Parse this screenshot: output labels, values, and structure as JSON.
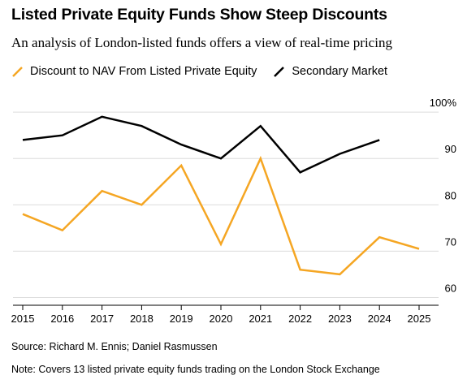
{
  "chart_data": {
    "type": "line",
    "title": "Listed Private Equity Funds Show Steep Discounts",
    "subtitle": "An analysis of London-listed funds offers a view of real-time pricing",
    "x": [
      "2015",
      "2016",
      "2017",
      "2018",
      "2019",
      "2020",
      "2021",
      "2022",
      "2023",
      "2024",
      "2025"
    ],
    "series": [
      {
        "name": "Discount to NAV From Listed Private Equity",
        "color": "#f5a623",
        "values": [
          78,
          74.5,
          83,
          80,
          88.5,
          71.5,
          90,
          66,
          65,
          73,
          70.5
        ]
      },
      {
        "name": "Secondary Market",
        "color": "#000000",
        "values": [
          94,
          95,
          99,
          97,
          93,
          90,
          97,
          87,
          91,
          94,
          null
        ]
      }
    ],
    "y_ticks": [
      "100%",
      "90",
      "80",
      "70",
      "60"
    ],
    "y_tick_values": [
      100,
      90,
      80,
      70,
      60
    ],
    "ylim": [
      58.5,
      103
    ],
    "grid": true,
    "legend_position": "top-left"
  },
  "footer": {
    "source": "Source: Richard M. Ennis; Daniel Rasmussen",
    "note": "Note: Covers 13 listed private equity funds trading on the London Stock Exchange"
  }
}
